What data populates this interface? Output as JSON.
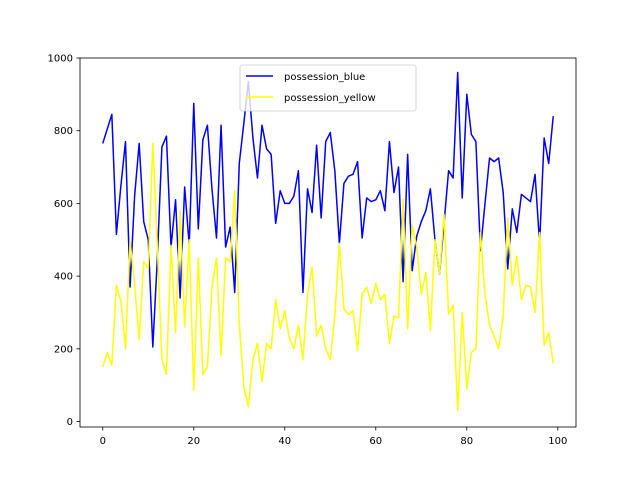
{
  "chart_data": {
    "type": "line",
    "title": "",
    "xlabel": "",
    "ylabel": "",
    "xlim": [
      -5,
      104
    ],
    "ylim": [
      -15,
      1000
    ],
    "xticks": [
      0,
      20,
      40,
      60,
      80,
      100
    ],
    "yticks": [
      0,
      200,
      400,
      600,
      800,
      1000
    ],
    "grid": false,
    "legend": "upper center",
    "x": [
      0,
      1,
      2,
      3,
      4,
      5,
      6,
      7,
      8,
      9,
      10,
      11,
      12,
      13,
      14,
      15,
      16,
      17,
      18,
      19,
      20,
      21,
      22,
      23,
      24,
      25,
      26,
      27,
      28,
      29,
      30,
      31,
      32,
      33,
      34,
      35,
      36,
      37,
      38,
      39,
      40,
      41,
      42,
      43,
      44,
      45,
      46,
      47,
      48,
      49,
      50,
      51,
      52,
      53,
      54,
      55,
      56,
      57,
      58,
      59,
      60,
      61,
      62,
      63,
      64,
      65,
      66,
      67,
      68,
      69,
      70,
      71,
      72,
      73,
      74,
      75,
      76,
      77,
      78,
      79,
      80,
      81,
      82,
      83,
      84,
      85,
      86,
      87,
      88,
      89,
      90,
      91,
      92,
      93,
      94,
      95,
      96,
      97,
      98,
      99
    ],
    "series": [
      {
        "name": "possession_blue",
        "color": "#0000ff",
        "values": [
          765,
          805,
          845,
          515,
          650,
          770,
          370,
          620,
          765,
          550,
          500,
          205,
          450,
          755,
          785,
          480,
          610,
          340,
          645,
          485,
          875,
          530,
          775,
          815,
          640,
          505,
          815,
          480,
          535,
          355,
          710,
          820,
          935,
          780,
          670,
          815,
          750,
          735,
          545,
          635,
          600,
          600,
          620,
          690,
          355,
          640,
          575,
          760,
          560,
          770,
          795,
          690,
          490,
          655,
          675,
          680,
          715,
          505,
          615,
          605,
          610,
          635,
          580,
          770,
          630,
          700,
          385,
          735,
          415,
          510,
          550,
          580,
          640,
          500,
          405,
          545,
          690,
          670,
          960,
          615,
          900,
          790,
          770,
          470,
          600,
          725,
          715,
          725,
          630,
          420,
          585,
          520,
          625,
          615,
          605,
          680,
          490,
          780,
          710,
          840
        ]
      },
      {
        "name": "possession_yellow",
        "color": "#ffff00",
        "values": [
          150,
          190,
          155,
          375,
          330,
          200,
          495,
          380,
          225,
          440,
          420,
          765,
          480,
          170,
          130,
          485,
          245,
          580,
          260,
          500,
          85,
          450,
          130,
          150,
          370,
          450,
          180,
          450,
          440,
          635,
          270,
          95,
          40,
          170,
          215,
          110,
          215,
          200,
          335,
          255,
          305,
          230,
          200,
          265,
          170,
          350,
          425,
          235,
          265,
          200,
          170,
          290,
          490,
          310,
          295,
          305,
          195,
          350,
          370,
          325,
          380,
          335,
          350,
          215,
          290,
          285,
          610,
          255,
          540,
          480,
          350,
          410,
          250,
          500,
          405,
          570,
          295,
          320,
          30,
          300,
          90,
          190,
          200,
          520,
          350,
          265,
          235,
          200,
          290,
          560,
          375,
          455,
          335,
          375,
          370,
          300,
          520,
          210,
          245,
          160
        ]
      }
    ]
  }
}
